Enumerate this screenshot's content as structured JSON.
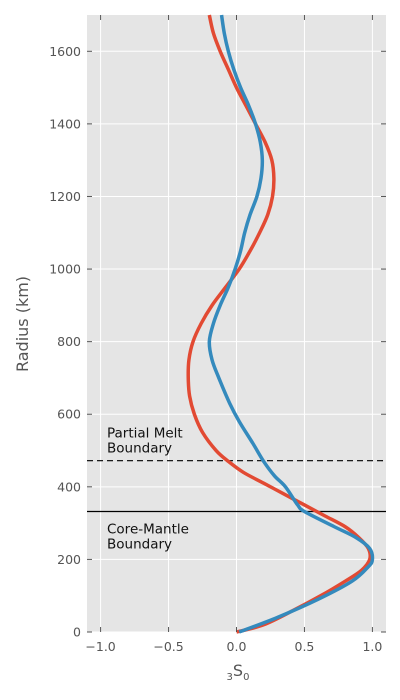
{
  "chart_data": {
    "type": "line",
    "title": "",
    "xlabel": "S",
    "xlabel_prefix": "3",
    "xlabel_subscript": "0",
    "ylabel": "Radius (km)",
    "xlim": [
      -1.1,
      1.1
    ],
    "ylim": [
      0,
      1700
    ],
    "grid": true,
    "xticks": [
      -1.0,
      -0.5,
      0.0,
      0.5,
      1.0
    ],
    "xtick_labels": [
      "−1.0",
      "−0.5",
      "0.0",
      "0.5",
      "1.0"
    ],
    "yticks": [
      0,
      200,
      400,
      600,
      800,
      1000,
      1200,
      1400,
      1600
    ],
    "ytick_labels": [
      "0",
      "200",
      "400",
      "600",
      "800",
      "1000",
      "1200",
      "1400",
      "1600"
    ],
    "series": [
      {
        "color": "#e24a33",
        "points": [
          [
            0.0,
            0
          ],
          [
            0.2,
            20
          ],
          [
            0.42,
            60
          ],
          [
            0.62,
            100
          ],
          [
            0.8,
            140
          ],
          [
            0.92,
            170
          ],
          [
            0.98,
            200
          ],
          [
            0.97,
            230
          ],
          [
            0.9,
            260
          ],
          [
            0.8,
            290
          ],
          [
            0.65,
            320
          ],
          [
            0.5,
            350
          ],
          [
            0.35,
            380
          ],
          [
            0.2,
            410
          ],
          [
            0.05,
            440
          ],
          [
            -0.06,
            470
          ],
          [
            -0.15,
            500
          ],
          [
            -0.25,
            550
          ],
          [
            -0.31,
            600
          ],
          [
            -0.345,
            650
          ],
          [
            -0.355,
            700
          ],
          [
            -0.35,
            750
          ],
          [
            -0.32,
            800
          ],
          [
            -0.26,
            850
          ],
          [
            -0.18,
            900
          ],
          [
            -0.08,
            950
          ],
          [
            0.02,
            1000
          ],
          [
            0.1,
            1050
          ],
          [
            0.17,
            1100
          ],
          [
            0.23,
            1150
          ],
          [
            0.265,
            1200
          ],
          [
            0.275,
            1250
          ],
          [
            0.26,
            1300
          ],
          [
            0.21,
            1350
          ],
          [
            0.14,
            1400
          ],
          [
            0.07,
            1450
          ],
          [
            0.0,
            1500
          ],
          [
            -0.06,
            1550
          ],
          [
            -0.12,
            1600
          ],
          [
            -0.17,
            1650
          ],
          [
            -0.2,
            1700
          ]
        ]
      },
      {
        "color": "#348abd",
        "points": [
          [
            0.02,
            0
          ],
          [
            0.3,
            40
          ],
          [
            0.6,
            90
          ],
          [
            0.85,
            140
          ],
          [
            0.97,
            180
          ],
          [
            1.0,
            200
          ],
          [
            0.98,
            230
          ],
          [
            0.88,
            260
          ],
          [
            0.72,
            290
          ],
          [
            0.5,
            332
          ],
          [
            0.45,
            350
          ],
          [
            0.36,
            400
          ],
          [
            0.28,
            430
          ],
          [
            0.2,
            470
          ],
          [
            0.12,
            520
          ],
          [
            0.02,
            580
          ],
          [
            -0.05,
            630
          ],
          [
            -0.13,
            700
          ],
          [
            -0.18,
            750
          ],
          [
            -0.2,
            800
          ],
          [
            -0.17,
            850
          ],
          [
            -0.12,
            900
          ],
          [
            -0.06,
            950
          ],
          [
            -0.01,
            1000
          ],
          [
            0.03,
            1050
          ],
          [
            0.06,
            1100
          ],
          [
            0.1,
            1150
          ],
          [
            0.15,
            1200
          ],
          [
            0.18,
            1250
          ],
          [
            0.19,
            1300
          ],
          [
            0.175,
            1350
          ],
          [
            0.14,
            1400
          ],
          [
            0.09,
            1450
          ],
          [
            0.03,
            1500
          ],
          [
            -0.02,
            1550
          ],
          [
            -0.06,
            1600
          ],
          [
            -0.09,
            1650
          ],
          [
            -0.11,
            1700
          ]
        ]
      }
    ],
    "hlines": [
      {
        "y": 472,
        "style": "dashed",
        "label_lines": [
          "Partial Melt",
          "Boundary"
        ]
      },
      {
        "y": 332,
        "style": "solid",
        "label_lines": [
          "Core-Mantle",
          "Boundary"
        ]
      }
    ]
  }
}
